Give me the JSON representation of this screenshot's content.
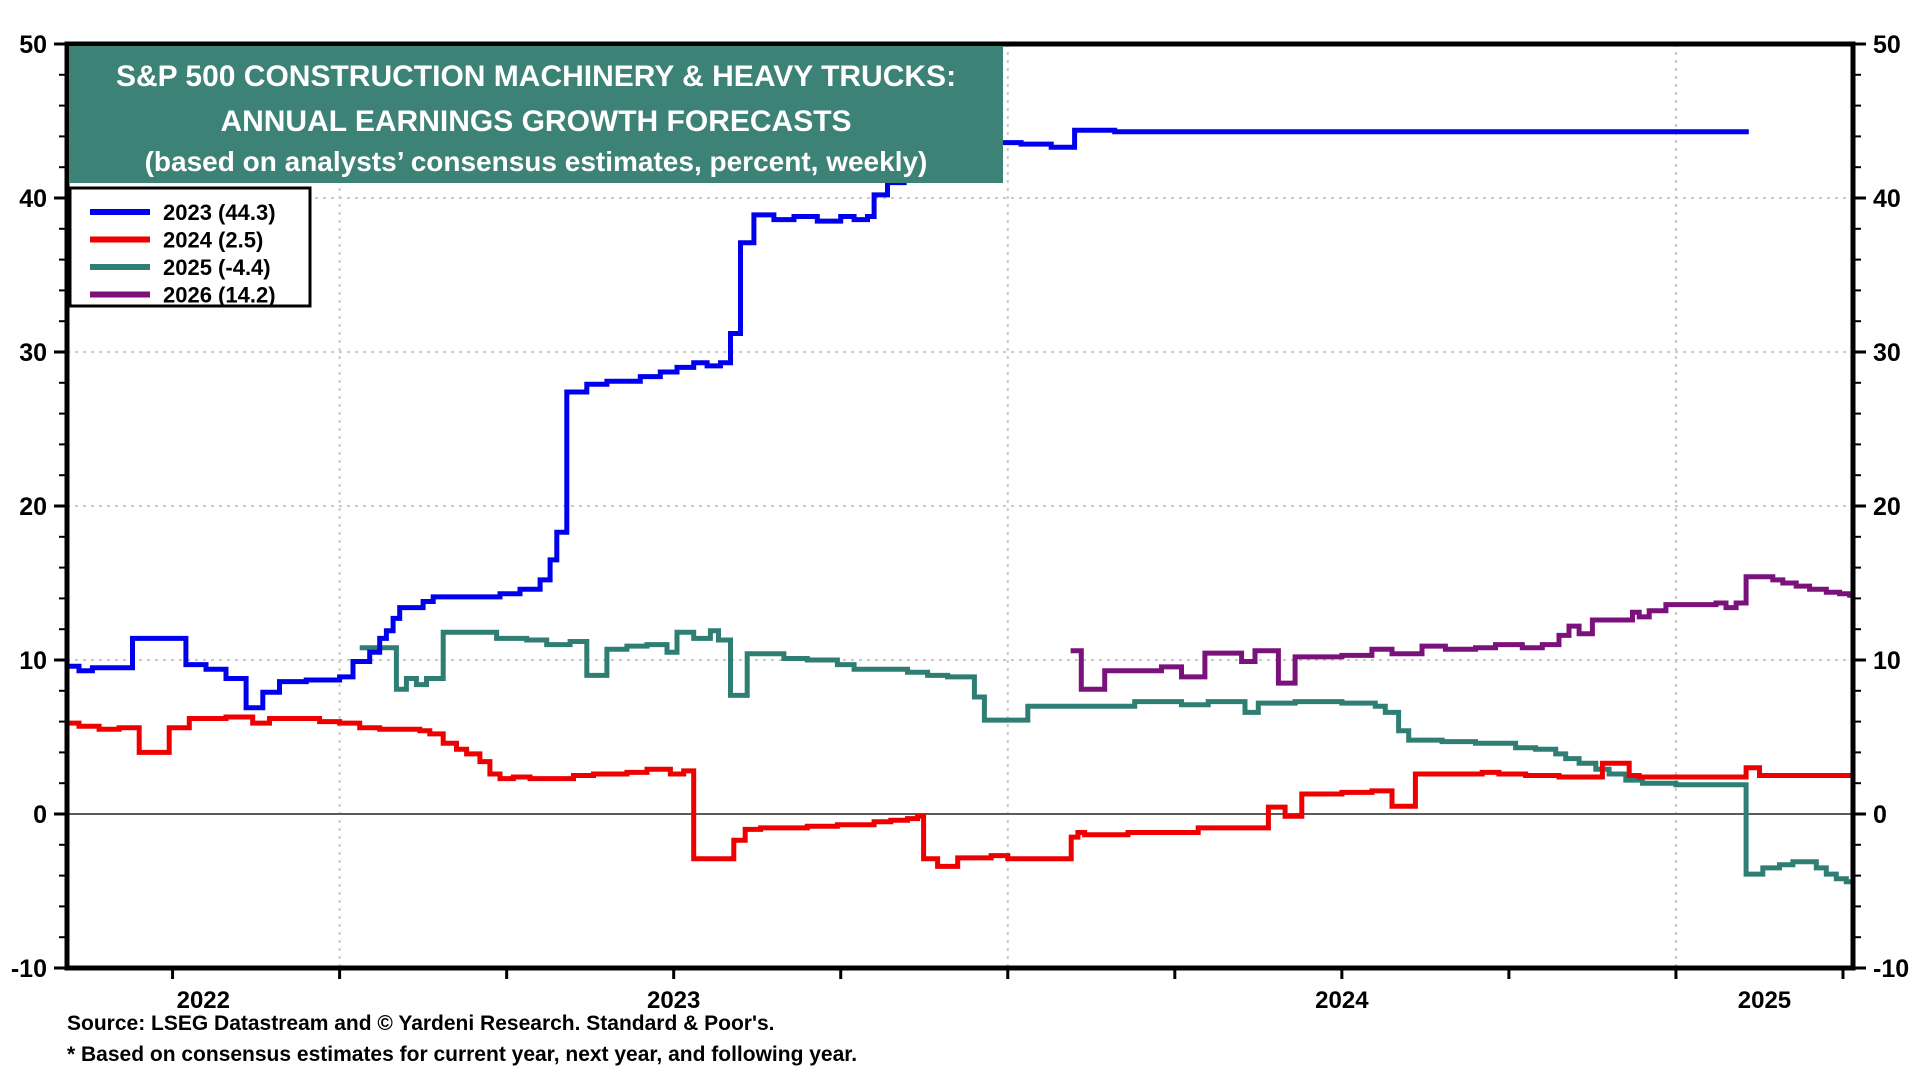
{
  "header": {
    "line1": "S&P 500 CONSTRUCTION MACHINERY & HEAVY TRUCKS:",
    "line2": "ANNUAL EARNINGS GROWTH FORECASTS",
    "line3": "(based on analysts’ consensus estimates, percent, weekly)",
    "box_color": "#3C8276"
  },
  "footer": {
    "source": "Source: LSEG Datastream and © Yardeni Research. Standard & Poor's.",
    "note": "* Based on consensus estimates for current year, next year, and following year."
  },
  "legend": {
    "items": [
      {
        "label": "2023 (44.3)",
        "color": "#0000EE"
      },
      {
        "label": "2024 (2.5)",
        "color": "#EE0000"
      },
      {
        "label": "2025 (-4.4)",
        "color": "#2F7E74"
      },
      {
        "label": "2026 (14.2)",
        "color": "#7B117B"
      }
    ]
  },
  "chart_data": {
    "type": "line",
    "title": "S&P 500 Construction Machinery & Heavy Trucks: Annual Earnings Growth Forecasts",
    "xlabel": "",
    "ylabel": "percent",
    "x_axis": {
      "min": 2022.592,
      "max": 2025.265,
      "year_gridlines": [
        2023,
        2024,
        2025
      ],
      "quarter_tick_start": 2022.75,
      "quarter_tick_step": 0.25,
      "year_labels": [
        "2022",
        "2023",
        "2024",
        "2025"
      ]
    },
    "y_axis": {
      "min": -10,
      "max": 50,
      "major_step": 10,
      "minor_step": 2,
      "gridline_values": [
        10,
        20,
        30,
        40
      ],
      "zero_line": 0,
      "tick_labels": [
        "-10",
        "0",
        "10",
        "20",
        "30",
        "40",
        "50"
      ]
    },
    "grid": "dotted, light gray; legend top-left; weekly step lines",
    "series": [
      {
        "name": "2025",
        "final_value": -4.4,
        "color": "#2F7E74",
        "t_end": 2025.265,
        "points": [
          [
            2023.03,
            10.8
          ],
          [
            2023.085,
            8.1
          ],
          [
            2023.1,
            8.8
          ],
          [
            2023.115,
            8.4
          ],
          [
            2023.13,
            8.8
          ],
          [
            2023.155,
            11.8
          ],
          [
            2023.235,
            11.4
          ],
          [
            2023.28,
            11.3
          ],
          [
            2023.31,
            11.0
          ],
          [
            2023.345,
            11.2
          ],
          [
            2023.37,
            9.0
          ],
          [
            2023.4,
            10.7
          ],
          [
            2023.43,
            10.9
          ],
          [
            2023.46,
            11.0
          ],
          [
            2023.49,
            10.5
          ],
          [
            2023.505,
            11.8
          ],
          [
            2023.53,
            11.4
          ],
          [
            2023.555,
            11.9
          ],
          [
            2023.567,
            11.3
          ],
          [
            2023.585,
            7.7
          ],
          [
            2023.61,
            10.4
          ],
          [
            2023.665,
            10.1
          ],
          [
            2023.7,
            10.0
          ],
          [
            2023.745,
            9.7
          ],
          [
            2023.77,
            9.4
          ],
          [
            2023.85,
            9.2
          ],
          [
            2023.88,
            9.0
          ],
          [
            2023.91,
            8.9
          ],
          [
            2023.95,
            7.6
          ],
          [
            2023.965,
            6.1
          ],
          [
            2024.03,
            7.0
          ],
          [
            2024.19,
            7.3
          ],
          [
            2024.26,
            7.1
          ],
          [
            2024.3,
            7.3
          ],
          [
            2024.355,
            6.6
          ],
          [
            2024.375,
            7.2
          ],
          [
            2024.43,
            7.3
          ],
          [
            2024.5,
            7.2
          ],
          [
            2024.55,
            7.0
          ],
          [
            2024.565,
            6.6
          ],
          [
            2024.585,
            5.4
          ],
          [
            2024.6,
            4.8
          ],
          [
            2024.65,
            4.7
          ],
          [
            2024.7,
            4.6
          ],
          [
            2024.76,
            4.3
          ],
          [
            2024.79,
            4.2
          ],
          [
            2024.82,
            3.9
          ],
          [
            2024.835,
            3.6
          ],
          [
            2024.855,
            3.3
          ],
          [
            2024.88,
            2.9
          ],
          [
            2024.9,
            2.6
          ],
          [
            2024.925,
            2.2
          ],
          [
            2024.95,
            2.0
          ],
          [
            2025.0,
            1.9
          ],
          [
            2025.105,
            -3.9
          ],
          [
            2025.13,
            -3.5
          ],
          [
            2025.155,
            -3.3
          ],
          [
            2025.175,
            -3.1
          ],
          [
            2025.21,
            -3.5
          ],
          [
            2025.225,
            -3.9
          ],
          [
            2025.24,
            -4.2
          ],
          [
            2025.255,
            -4.4
          ]
        ]
      },
      {
        "name": "2026",
        "final_value": 14.2,
        "color": "#7B117B",
        "t_end": 2025.265,
        "points": [
          [
            2024.094,
            10.6
          ],
          [
            2024.11,
            8.1
          ],
          [
            2024.145,
            9.3
          ],
          [
            2024.23,
            9.55
          ],
          [
            2024.26,
            8.9
          ],
          [
            2024.295,
            10.45
          ],
          [
            2024.35,
            9.9
          ],
          [
            2024.37,
            10.6
          ],
          [
            2024.405,
            8.5
          ],
          [
            2024.43,
            10.2
          ],
          [
            2024.5,
            10.3
          ],
          [
            2024.545,
            10.7
          ],
          [
            2024.575,
            10.4
          ],
          [
            2024.62,
            10.9
          ],
          [
            2024.655,
            10.7
          ],
          [
            2024.7,
            10.8
          ],
          [
            2024.73,
            11.0
          ],
          [
            2024.77,
            10.8
          ],
          [
            2024.8,
            11.0
          ],
          [
            2024.825,
            11.6
          ],
          [
            2024.84,
            12.2
          ],
          [
            2024.855,
            11.7
          ],
          [
            2024.875,
            12.6
          ],
          [
            2024.935,
            13.1
          ],
          [
            2024.945,
            12.8
          ],
          [
            2024.96,
            13.2
          ],
          [
            2024.985,
            13.6
          ],
          [
            2025.06,
            13.7
          ],
          [
            2025.075,
            13.4
          ],
          [
            2025.09,
            13.7
          ],
          [
            2025.105,
            15.4
          ],
          [
            2025.145,
            15.2
          ],
          [
            2025.16,
            15.0
          ],
          [
            2025.18,
            14.8
          ],
          [
            2025.2,
            14.6
          ],
          [
            2025.225,
            14.4
          ],
          [
            2025.245,
            14.3
          ],
          [
            2025.26,
            14.2
          ]
        ]
      },
      {
        "name": "2024",
        "final_value": 2.5,
        "color": "#EE0000",
        "t_end": 2025.265,
        "points": [
          [
            2022.592,
            5.9
          ],
          [
            2022.61,
            5.7
          ],
          [
            2022.64,
            5.5
          ],
          [
            2022.67,
            5.6
          ],
          [
            2022.7,
            4.0
          ],
          [
            2022.745,
            5.6
          ],
          [
            2022.775,
            6.2
          ],
          [
            2022.83,
            6.3
          ],
          [
            2022.87,
            5.9
          ],
          [
            2022.895,
            6.2
          ],
          [
            2022.97,
            6.0
          ],
          [
            2023.0,
            5.9
          ],
          [
            2023.03,
            5.6
          ],
          [
            2023.06,
            5.5
          ],
          [
            2023.12,
            5.4
          ],
          [
            2023.135,
            5.2
          ],
          [
            2023.155,
            4.6
          ],
          [
            2023.175,
            4.2
          ],
          [
            2023.19,
            3.9
          ],
          [
            2023.21,
            3.4
          ],
          [
            2023.225,
            2.6
          ],
          [
            2023.24,
            2.3
          ],
          [
            2023.26,
            2.4
          ],
          [
            2023.285,
            2.3
          ],
          [
            2023.35,
            2.5
          ],
          [
            2023.38,
            2.6
          ],
          [
            2023.43,
            2.7
          ],
          [
            2023.46,
            2.9
          ],
          [
            2023.495,
            2.6
          ],
          [
            2023.515,
            2.8
          ],
          [
            2023.53,
            -2.9
          ],
          [
            2023.59,
            -1.7
          ],
          [
            2023.607,
            -1.0
          ],
          [
            2023.63,
            -0.9
          ],
          [
            2023.7,
            -0.8
          ],
          [
            2023.745,
            -0.7
          ],
          [
            2023.8,
            -0.5
          ],
          [
            2023.825,
            -0.4
          ],
          [
            2023.85,
            -0.3
          ],
          [
            2023.865,
            -0.15
          ],
          [
            2023.874,
            -2.9
          ],
          [
            2023.895,
            -3.4
          ],
          [
            2023.925,
            -2.85
          ],
          [
            2023.975,
            -2.7
          ],
          [
            2024.0,
            -2.9
          ],
          [
            2024.095,
            -1.5
          ],
          [
            2024.105,
            -1.2
          ],
          [
            2024.115,
            -1.35
          ],
          [
            2024.18,
            -1.2
          ],
          [
            2024.285,
            -0.9
          ],
          [
            2024.39,
            0.45
          ],
          [
            2024.415,
            -0.15
          ],
          [
            2024.44,
            1.3
          ],
          [
            2024.5,
            1.4
          ],
          [
            2024.545,
            1.5
          ],
          [
            2024.575,
            0.5
          ],
          [
            2024.61,
            2.6
          ],
          [
            2024.71,
            2.7
          ],
          [
            2024.735,
            2.6
          ],
          [
            2024.775,
            2.5
          ],
          [
            2024.825,
            2.4
          ],
          [
            2024.89,
            3.3
          ],
          [
            2024.93,
            2.5
          ],
          [
            2024.945,
            2.4
          ],
          [
            2025.105,
            3.0
          ],
          [
            2025.125,
            2.5
          ]
        ]
      },
      {
        "name": "2023",
        "final_value": 44.3,
        "color": "#0000EE",
        "t_end": 2025.109,
        "points": [
          [
            2022.592,
            9.6
          ],
          [
            2022.61,
            9.3
          ],
          [
            2022.63,
            9.5
          ],
          [
            2022.69,
            11.4
          ],
          [
            2022.77,
            9.7
          ],
          [
            2022.8,
            9.4
          ],
          [
            2022.83,
            8.8
          ],
          [
            2022.86,
            6.9
          ],
          [
            2022.885,
            7.9
          ],
          [
            2022.91,
            8.6
          ],
          [
            2022.95,
            8.7
          ],
          [
            2023.0,
            8.9
          ],
          [
            2023.02,
            9.9
          ],
          [
            2023.045,
            10.5
          ],
          [
            2023.06,
            11.4
          ],
          [
            2023.07,
            11.9
          ],
          [
            2023.08,
            12.7
          ],
          [
            2023.09,
            13.4
          ],
          [
            2023.125,
            13.8
          ],
          [
            2023.14,
            14.1
          ],
          [
            2023.24,
            14.3
          ],
          [
            2023.27,
            14.6
          ],
          [
            2023.3,
            15.2
          ],
          [
            2023.315,
            16.5
          ],
          [
            2023.325,
            18.3
          ],
          [
            2023.34,
            27.4
          ],
          [
            2023.37,
            27.9
          ],
          [
            2023.4,
            28.1
          ],
          [
            2023.45,
            28.4
          ],
          [
            2023.48,
            28.7
          ],
          [
            2023.505,
            29.0
          ],
          [
            2023.53,
            29.3
          ],
          [
            2023.55,
            29.1
          ],
          [
            2023.57,
            29.3
          ],
          [
            2023.585,
            31.2
          ],
          [
            2023.6,
            37.1
          ],
          [
            2023.62,
            38.9
          ],
          [
            2023.65,
            38.6
          ],
          [
            2023.68,
            38.8
          ],
          [
            2023.715,
            38.5
          ],
          [
            2023.75,
            38.8
          ],
          [
            2023.77,
            38.6
          ],
          [
            2023.79,
            38.8
          ],
          [
            2023.8,
            40.2
          ],
          [
            2023.82,
            41.0
          ],
          [
            2023.845,
            41.6
          ],
          [
            2023.88,
            42.4
          ],
          [
            2023.93,
            43.1
          ],
          [
            2023.97,
            43.6
          ],
          [
            2024.02,
            43.5
          ],
          [
            2024.065,
            43.3
          ],
          [
            2024.1,
            44.4
          ],
          [
            2024.16,
            44.3
          ]
        ]
      }
    ]
  }
}
